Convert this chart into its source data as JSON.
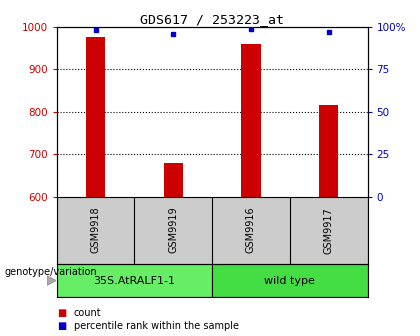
{
  "title": "GDS617 / 253223_at",
  "samples": [
    "GSM9918",
    "GSM9919",
    "GSM9916",
    "GSM9917"
  ],
  "counts": [
    975,
    678,
    960,
    815
  ],
  "percentile_ranks": [
    98,
    96,
    99,
    97
  ],
  "ylim_left": [
    600,
    1000
  ],
  "ylim_right": [
    0,
    100
  ],
  "yticks_left": [
    600,
    700,
    800,
    900,
    1000
  ],
  "yticks_right": [
    0,
    25,
    50,
    75,
    100
  ],
  "bar_color": "#cc0000",
  "dot_color": "#0000cc",
  "groups": [
    {
      "label": "35S.AtRALF1-1",
      "color": "#66ee66"
    },
    {
      "label": "wild type",
      "color": "#44dd44"
    }
  ],
  "genotype_label": "genotype/variation",
  "legend_count_label": "count",
  "legend_percentile_label": "percentile rank within the sample",
  "plot_bg_color": "#ffffff",
  "sample_bg_color": "#cccccc",
  "left_tick_color": "#cc0000",
  "right_tick_color": "#0000cc"
}
